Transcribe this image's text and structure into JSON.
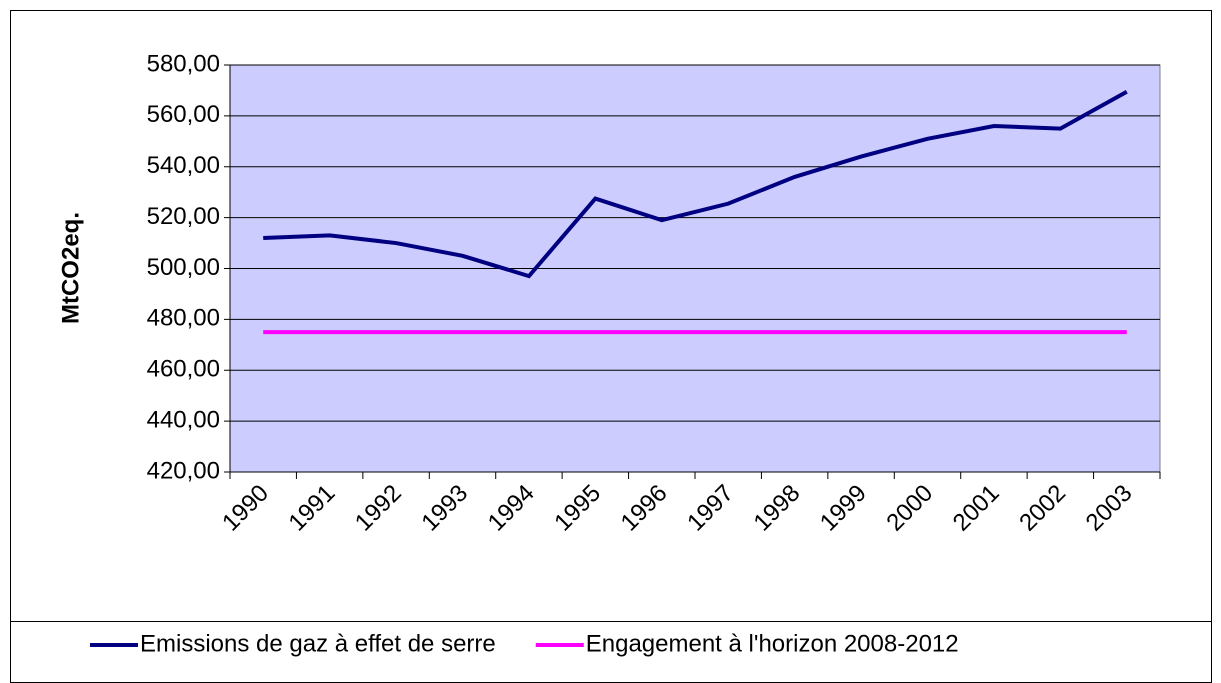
{
  "chart_data": {
    "type": "line",
    "y_label": "MtCO2eq.",
    "categories": [
      "1990",
      "1991",
      "1992",
      "1993",
      "1994",
      "1995",
      "1996",
      "1997",
      "1998",
      "1999",
      "2000",
      "2001",
      "2002",
      "2003"
    ],
    "series": [
      {
        "name": "Emissions de gaz à effet de serre",
        "color": "#000080",
        "values": [
          512,
          513,
          510,
          505,
          497,
          527.5,
          519,
          525.5,
          536,
          544,
          551,
          556,
          555,
          569.5
        ]
      },
      {
        "name": "Engagement à l'horizon 2008-2012",
        "color": "#ff00ff",
        "values": [
          475,
          475,
          475,
          475,
          475,
          475,
          475,
          475,
          475,
          475,
          475,
          475,
          475,
          475
        ]
      }
    ],
    "ylim": [
      420,
      580
    ],
    "yticks": [
      {
        "value": 420,
        "label": "420,00"
      },
      {
        "value": 440,
        "label": "440,00"
      },
      {
        "value": 460,
        "label": "460,00"
      },
      {
        "value": 480,
        "label": "480,00"
      },
      {
        "value": 500,
        "label": "500,00"
      },
      {
        "value": 520,
        "label": "520,00"
      },
      {
        "value": 540,
        "label": "540,00"
      },
      {
        "value": 560,
        "label": "560,00"
      },
      {
        "value": 580,
        "label": "580,00"
      }
    ],
    "grid": true,
    "plot_background": "#ccccff",
    "legend": "bottom"
  }
}
